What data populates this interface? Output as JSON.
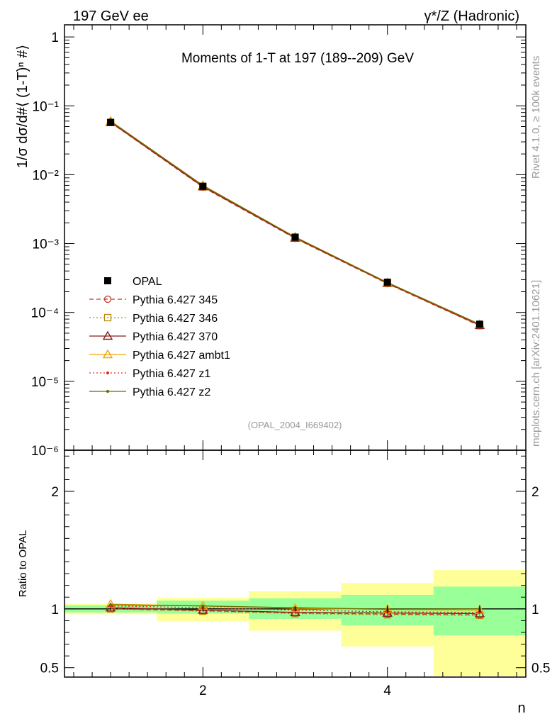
{
  "header": {
    "left": "197 GeV ee",
    "right": "γ*/Z (Hadronic)"
  },
  "side_labels": {
    "rivet": "Rivet 4.1.0, ≥ 100k events",
    "mcplots": "mcplots.cern.ch [arXiv:2401.10621]"
  },
  "chart_data": [
    {
      "type": "line",
      "title": "Moments of 1-T at 197 (189--209) GeV",
      "ylabel": "1/σ  dσ/d#⟨ (1-T)ⁿ #⟩",
      "xlabel": "",
      "yscale": "log",
      "xlim": [
        0.5,
        5.5
      ],
      "ylim": [
        1e-06,
        1.5
      ],
      "y_tick_labels": [
        "1",
        "10⁻¹",
        "10⁻²",
        "10⁻³",
        "10⁻⁴",
        "10⁻⁵",
        "10⁻⁶"
      ],
      "x": [
        1,
        2,
        3,
        4,
        5
      ],
      "reference": {
        "name": "OPAL",
        "values": [
          0.0575,
          0.0068,
          0.00124,
          0.000275,
          6.75e-05
        ]
      },
      "series": [
        {
          "name": "Pythia 6.427 345",
          "color": "#c0392b",
          "style": "dashed",
          "marker": "circle",
          "values": [
            0.0573,
            0.0066,
            0.00119,
            0.000262,
            6.4e-05
          ]
        },
        {
          "name": "Pythia 6.427 346",
          "color": "#b8860b",
          "style": "dotted",
          "marker": "square",
          "values": [
            0.0572,
            0.00665,
            0.0012,
            0.000264,
            6.42e-05
          ]
        },
        {
          "name": "Pythia 6.427 370",
          "color": "#8b1a1a",
          "style": "solid",
          "marker": "triangle",
          "values": [
            0.0578,
            0.00672,
            0.00121,
            0.000266,
            6.52e-05
          ]
        },
        {
          "name": "Pythia 6.427 ambt1",
          "color": "#f0a800",
          "style": "solid",
          "marker": "triangle",
          "values": [
            0.06,
            0.007,
            0.00125,
            0.000272,
            6.7e-05
          ]
        },
        {
          "name": "Pythia 6.427 z1",
          "color": "#e03020",
          "style": "dotted",
          "marker": "dot",
          "values": [
            0.059,
            0.0069,
            0.00123,
            0.000268,
            6.6e-05
          ]
        },
        {
          "name": "Pythia 6.427 z2",
          "color": "#6b6b00",
          "style": "solid",
          "marker": "dot",
          "values": [
            0.0598,
            0.00698,
            0.00124,
            0.000272,
            6.75e-05
          ]
        }
      ],
      "watermark": "(OPAL_2004_I669402)"
    },
    {
      "type": "line",
      "title": "",
      "ylabel": "Ratio to OPAL",
      "xlabel": "n",
      "xlim": [
        0.5,
        5.5
      ],
      "ylim": [
        0.42,
        2.35
      ],
      "x_ticks": [
        2,
        4
      ],
      "x_tick_labels": [
        "2",
        "4"
      ],
      "y_ticks": [
        0.5,
        1,
        2
      ],
      "y_tick_labels": [
        "0.5",
        "1",
        "2"
      ],
      "bands": [
        {
          "x0": 0.5,
          "x1": 1.5,
          "green": [
            0.97,
            1.03
          ],
          "yellow": [
            0.955,
            1.045
          ]
        },
        {
          "x0": 1.5,
          "x1": 2.5,
          "green": [
            0.96,
            1.07
          ],
          "yellow": [
            0.895,
            1.095
          ]
        },
        {
          "x0": 2.5,
          "x1": 3.5,
          "green": [
            0.915,
            1.09
          ],
          "yellow": [
            0.815,
            1.15
          ]
        },
        {
          "x0": 3.5,
          "x1": 4.5,
          "green": [
            0.86,
            1.12
          ],
          "yellow": [
            0.68,
            1.22
          ]
        },
        {
          "x0": 4.5,
          "x1": 5.5,
          "green": [
            0.775,
            1.19
          ],
          "yellow": [
            0.43,
            1.33
          ]
        }
      ],
      "x": [
        1,
        2,
        3,
        4,
        5
      ],
      "series": [
        {
          "name": "Pythia 6.427 345",
          "color": "#c0392b",
          "style": "dashed",
          "marker": "circle",
          "values": [
            1.0,
            0.985,
            0.965,
            0.955,
            0.95
          ]
        },
        {
          "name": "Pythia 6.427 346",
          "color": "#b8860b",
          "style": "dotted",
          "marker": "square",
          "values": [
            1.0,
            0.98,
            0.96,
            0.95,
            0.945
          ]
        },
        {
          "name": "Pythia 6.427 370",
          "color": "#8b1a1a",
          "style": "solid",
          "marker": "triangle",
          "values": [
            1.01,
            0.99,
            0.97,
            0.965,
            0.96
          ]
        },
        {
          "name": "Pythia 6.427 ambt1",
          "color": "#f0a800",
          "style": "solid",
          "marker": "triangle",
          "values": [
            1.04,
            1.025,
            1.005,
            0.995,
            0.99
          ]
        },
        {
          "name": "Pythia 6.427 z1",
          "color": "#e03020",
          "style": "dotted",
          "marker": "dot",
          "values": [
            1.025,
            1.01,
            0.99,
            0.975,
            0.97
          ]
        },
        {
          "name": "Pythia 6.427 z2",
          "color": "#6b6b00",
          "style": "solid",
          "marker": "dot",
          "values": [
            1.035,
            1.025,
            1.01,
            0.998,
            1.0
          ]
        }
      ],
      "ref_errors": [
        0.01,
        0.02,
        0.02,
        0.03,
        0.03
      ]
    }
  ]
}
